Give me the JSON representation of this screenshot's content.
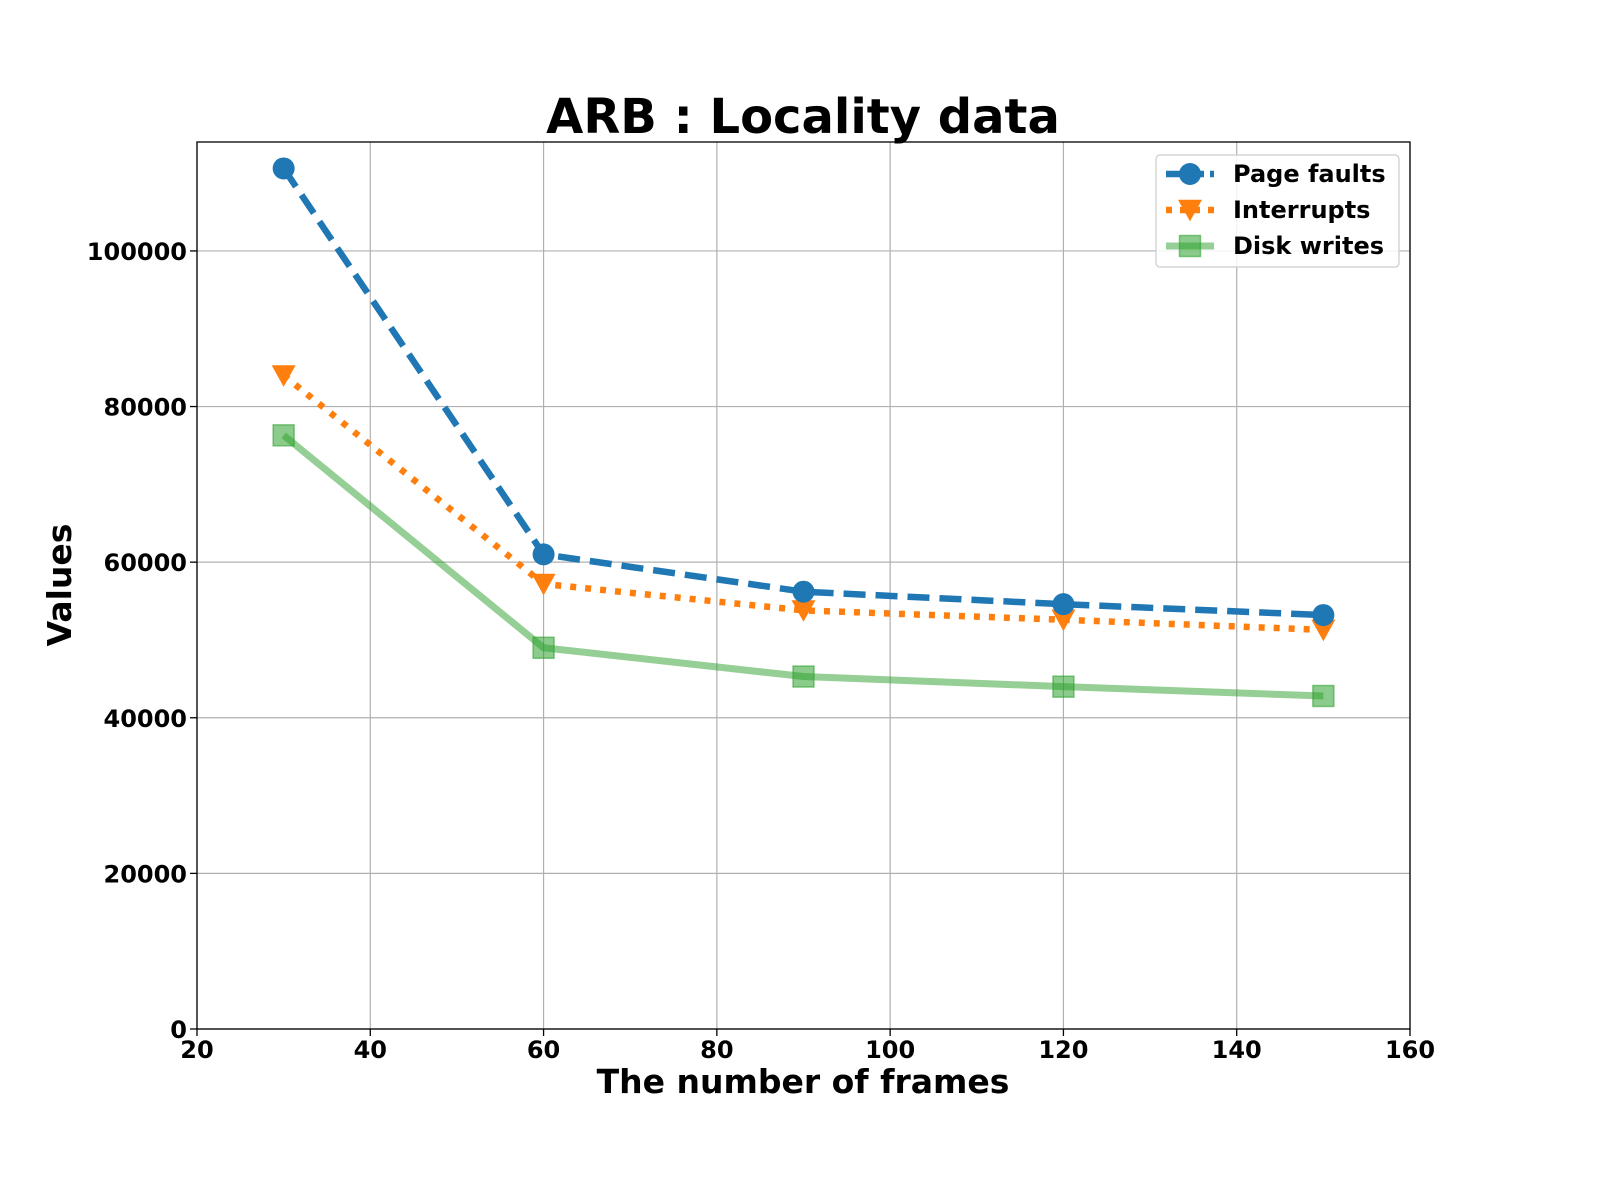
{
  "chart_data": {
    "type": "line",
    "title": "ARB : Locality data",
    "xlabel": "The number of frames",
    "ylabel": "Values",
    "xlim": [
      20,
      160
    ],
    "ylim": [
      0,
      114000
    ],
    "xticks": [
      20,
      40,
      60,
      80,
      100,
      120,
      140,
      160
    ],
    "yticks": [
      0,
      20000,
      40000,
      60000,
      80000,
      100000
    ],
    "x": [
      30,
      60,
      90,
      120,
      150
    ],
    "grid": true,
    "legend_position": "top-right",
    "series": [
      {
        "name": "Page faults",
        "values": [
          110600,
          61000,
          56200,
          54600,
          53200
        ],
        "color": "#1f77b4",
        "marker": "circle",
        "line_style": "dashed"
      },
      {
        "name": "Interrupts",
        "values": [
          84000,
          57200,
          53800,
          52600,
          51300
        ],
        "color": "#ff7f0e",
        "marker": "triangle-down",
        "line_style": "dotted"
      },
      {
        "name": "Disk writes",
        "values": [
          76300,
          49000,
          45300,
          44000,
          42800
        ],
        "color": "#2ca02c",
        "marker": "square",
        "line_style": "solid"
      }
    ]
  }
}
